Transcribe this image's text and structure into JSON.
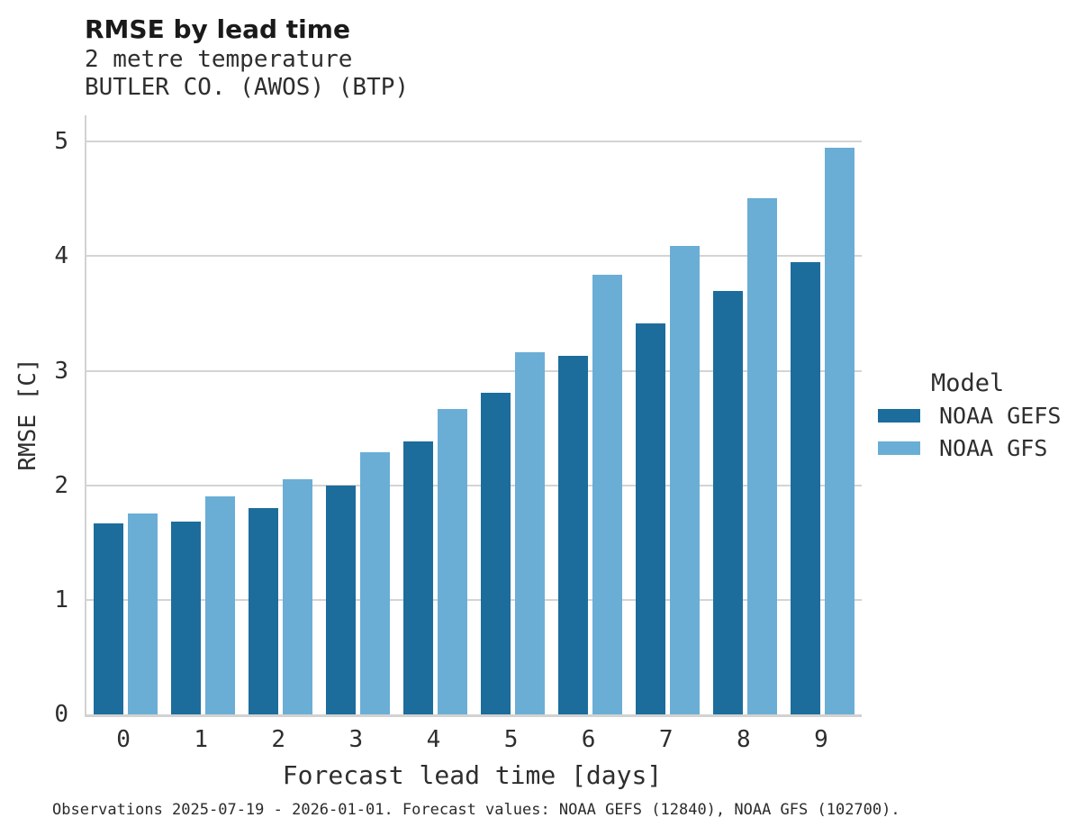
{
  "header": {
    "title": "RMSE by lead time",
    "subtitle_line1": "2 metre temperature",
    "subtitle_line2": "BUTLER CO. (AWOS) (BTP)"
  },
  "chart_data": {
    "type": "bar",
    "title": "RMSE by lead time",
    "subtitle": "2 metre temperature / BUTLER CO. (AWOS) (BTP)",
    "xlabel": "Forecast lead time [days]",
    "ylabel": "RMSE [C]",
    "categories": [
      "0",
      "1",
      "2",
      "3",
      "4",
      "5",
      "6",
      "7",
      "8",
      "9"
    ],
    "series": [
      {
        "name": "NOAA GEFS",
        "color": "#1c6d9c",
        "values": [
          1.67,
          1.68,
          1.8,
          2.0,
          2.38,
          2.81,
          3.13,
          3.41,
          3.7,
          3.95
        ]
      },
      {
        "name": "NOAA GFS",
        "color": "#6aaed6",
        "values": [
          1.75,
          1.9,
          2.05,
          2.29,
          2.67,
          3.16,
          3.84,
          4.09,
          4.51,
          4.95
        ]
      }
    ],
    "ylim": [
      0,
      5.23
    ],
    "yticks": [
      0,
      1,
      2,
      3,
      4,
      5
    ],
    "grid": true,
    "grid_color": "#d4d4d4",
    "legend_position": "right"
  },
  "legend": {
    "title": "Model",
    "entries": [
      {
        "label": "NOAA GEFS",
        "color": "#1c6d9c"
      },
      {
        "label": "NOAA GFS",
        "color": "#6aaed6"
      }
    ]
  },
  "caption": {
    "text": "Observations 2025-07-19 - 2026-01-01. Forecast values: NOAA GEFS (12840), NOAA GFS (102700)."
  }
}
